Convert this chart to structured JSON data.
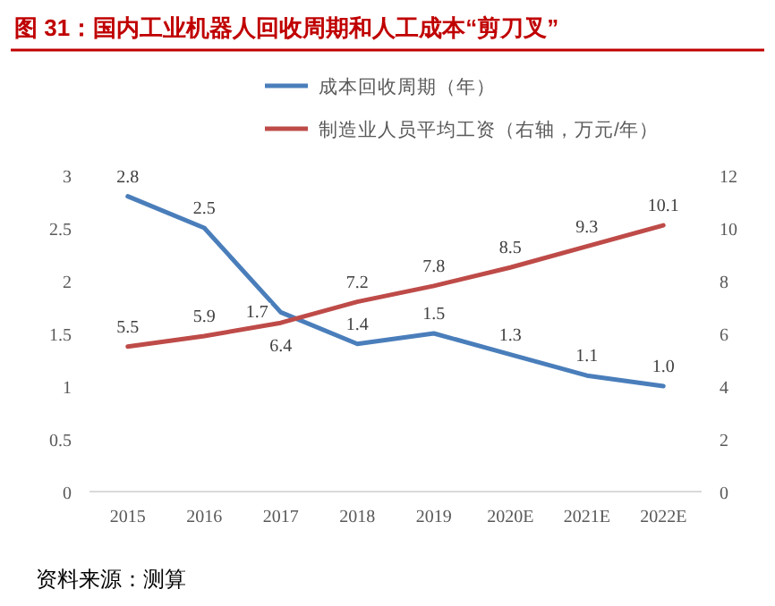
{
  "chart_data": {
    "type": "line",
    "title": "图 31：国内工业机器人回收周期和人工成本“剪刀叉”",
    "categories": [
      "2015",
      "2016",
      "2017",
      "2018",
      "2019",
      "2020E",
      "2021E",
      "2022E"
    ],
    "series": [
      {
        "name": "成本回收周期（年）",
        "color": "#4a7ebb",
        "values": [
          2.8,
          2.5,
          1.7,
          1.4,
          1.5,
          1.3,
          1.1,
          1.0
        ],
        "value_labels": [
          "2.8",
          "2.5",
          "1.7",
          "1.4",
          "1.5",
          "1.3",
          "1.1",
          "1.0"
        ]
      },
      {
        "name": "制造业人员平均工资（右轴，万元/年）",
        "color": "#be4b48",
        "axis": "y2",
        "values": [
          5.5,
          5.9,
          6.4,
          7.2,
          7.8,
          8.5,
          9.3,
          10.1
        ],
        "value_labels": [
          "5.5",
          "5.9",
          "6.4",
          "7.2",
          "7.8",
          "8.5",
          "9.3",
          "10.1"
        ]
      }
    ],
    "ylim": [
      0,
      3
    ],
    "yticks": [
      0,
      0.5,
      1,
      1.5,
      2,
      2.5,
      3
    ],
    "y2lim": [
      0,
      12
    ],
    "y2ticks": [
      0,
      2,
      4,
      6,
      8,
      10,
      12
    ],
    "data_labels": true,
    "legend": "top",
    "grid": false,
    "marker": "none",
    "line_style": "solid",
    "annotations": [
      "资料来源：测算"
    ]
  }
}
